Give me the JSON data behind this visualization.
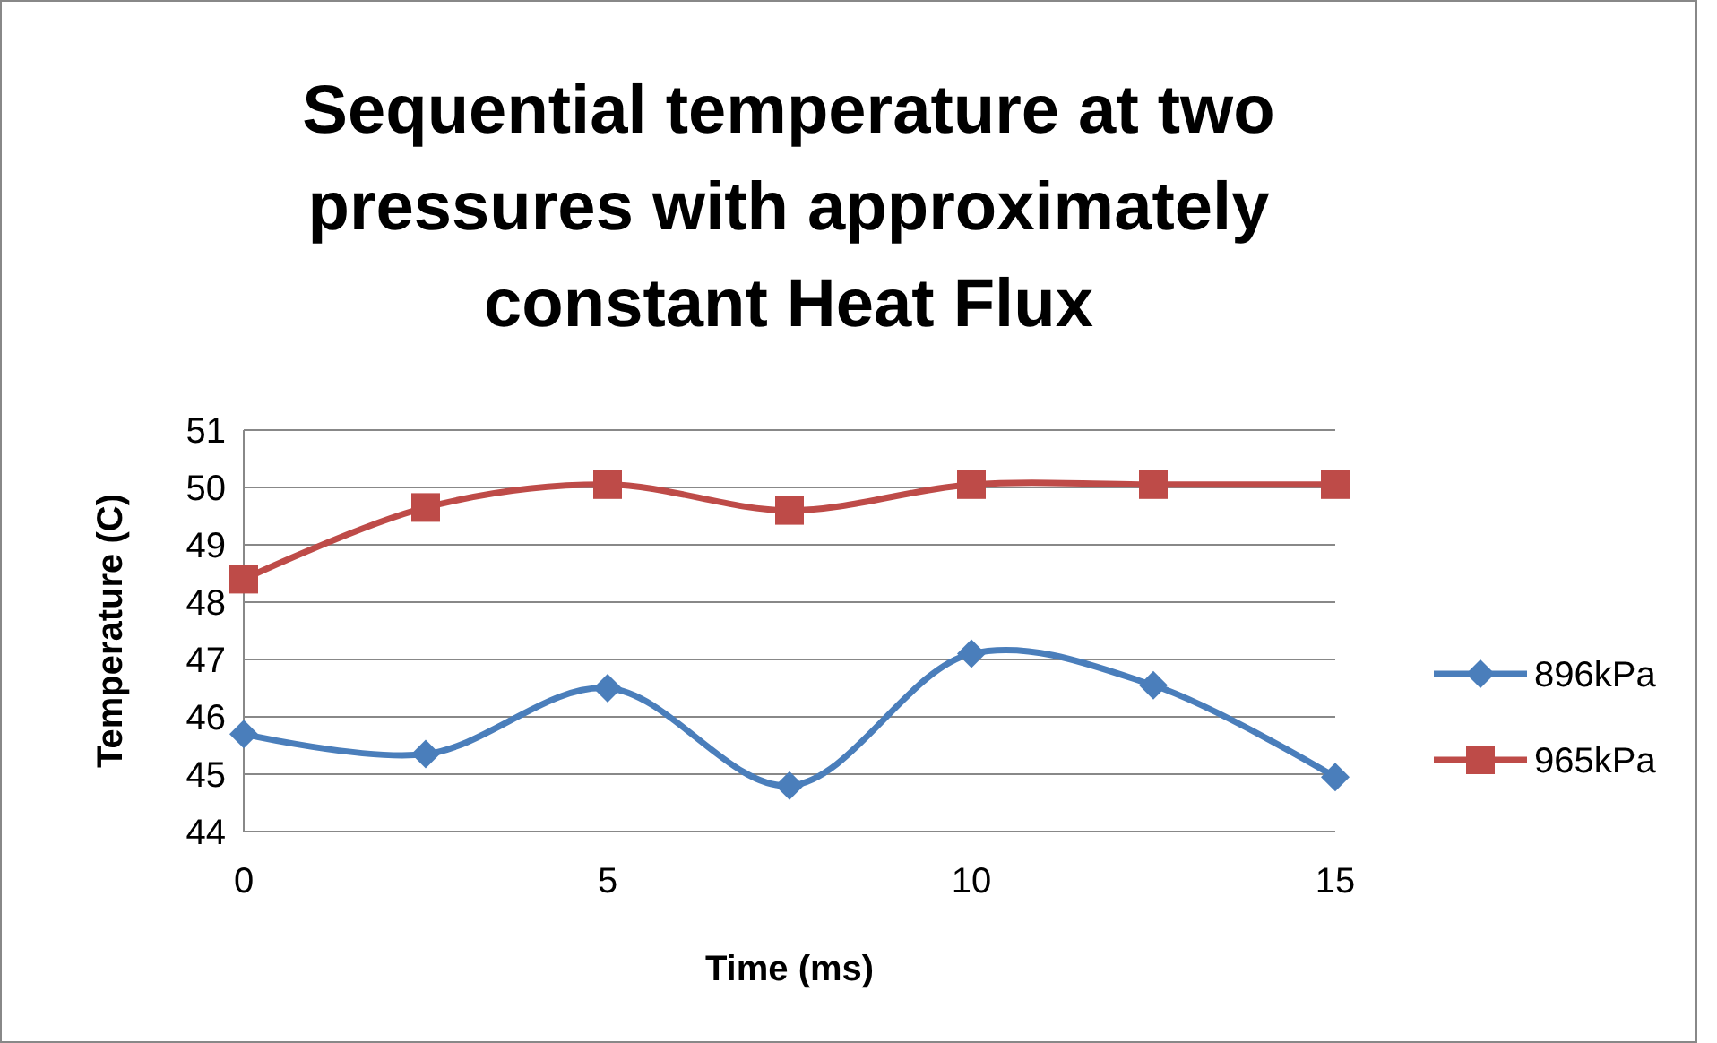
{
  "chart_data": {
    "type": "line",
    "title": "Sequential temperature at two pressures with approximately constant Heat Flux",
    "xlabel": "Time (ms)",
    "ylabel": "Temperature (C)",
    "x": [
      0,
      2.5,
      5,
      7.5,
      10,
      12.5,
      15
    ],
    "series": [
      {
        "name": "896kPa",
        "color": "#4a7ebb",
        "marker": "diamond",
        "values": [
          45.7,
          45.35,
          46.5,
          44.8,
          47.1,
          46.55,
          44.95
        ]
      },
      {
        "name": "965kPa",
        "color": "#be4b48",
        "marker": "square",
        "values": [
          48.4,
          49.65,
          50.05,
          49.6,
          50.05,
          50.05,
          50.05
        ]
      }
    ],
    "xlim": [
      0,
      15
    ],
    "xticks": [
      0,
      5,
      10,
      15
    ],
    "ylim": [
      44,
      51
    ],
    "yticks": [
      44,
      45,
      46,
      47,
      48,
      49,
      50,
      51
    ],
    "grid": "y",
    "legend": "right",
    "line_style": "solid"
  }
}
